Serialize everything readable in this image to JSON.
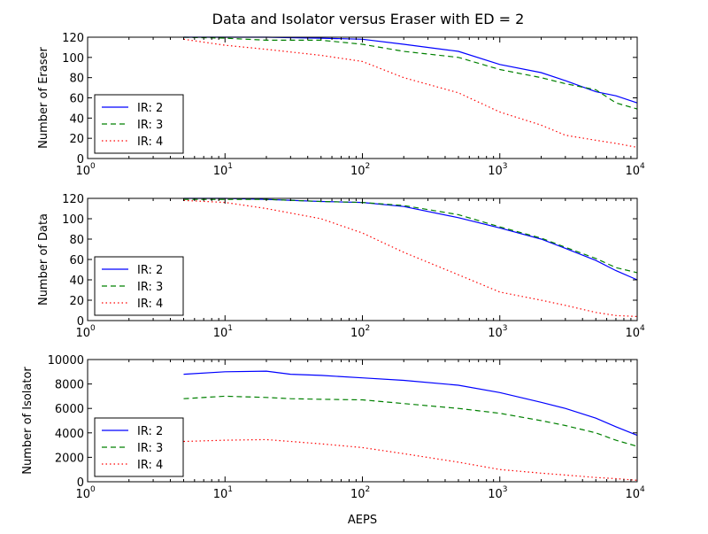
{
  "figure": {
    "title": "Data and Isolator versus Eraser with ED = 2"
  },
  "chart_data": [
    {
      "type": "line",
      "xscale": "log",
      "xlim": [
        1,
        10000
      ],
      "ylim": [
        0,
        120
      ],
      "yticks": [
        0,
        20,
        40,
        60,
        80,
        100,
        120
      ],
      "xtick_labels": [
        {
          "base": "10",
          "exp": "0"
        },
        {
          "base": "10",
          "exp": "1"
        },
        {
          "base": "10",
          "exp": "2"
        },
        {
          "base": "10",
          "exp": "3"
        },
        {
          "base": "10",
          "exp": "4"
        }
      ],
      "xlabel": "",
      "ylabel": "Number of Eraser",
      "legend_position": "lower-left",
      "series": [
        {
          "name": "IR: 2",
          "color": "#0000ff",
          "style": "solid",
          "x": [
            5,
            10,
            20,
            50,
            100,
            200,
            500,
            1000,
            2000,
            3000,
            5000,
            7000,
            10000
          ],
          "y": [
            120,
            120,
            120,
            119,
            118,
            113,
            106,
            93,
            85,
            77,
            66,
            62,
            55
          ]
        },
        {
          "name": "IR: 3",
          "color": "#008000",
          "style": "dashed",
          "x": [
            5,
            10,
            20,
            50,
            100,
            200,
            500,
            1000,
            2000,
            3000,
            5000,
            7000,
            10000
          ],
          "y": [
            120,
            119,
            117,
            117,
            113,
            106,
            100,
            88,
            80,
            74,
            68,
            55,
            49
          ]
        },
        {
          "name": "IR: 4",
          "color": "#ff0000",
          "style": "dotted",
          "x": [
            5,
            10,
            20,
            50,
            100,
            200,
            500,
            1000,
            2000,
            3000,
            5000,
            7000,
            10000
          ],
          "y": [
            118,
            112,
            108,
            102,
            96,
            80,
            65,
            46,
            33,
            23,
            18,
            15,
            11
          ]
        }
      ]
    },
    {
      "type": "line",
      "xscale": "log",
      "xlim": [
        1,
        10000
      ],
      "ylim": [
        0,
        120
      ],
      "yticks": [
        0,
        20,
        40,
        60,
        80,
        100,
        120
      ],
      "xtick_labels": [
        {
          "base": "10",
          "exp": "0"
        },
        {
          "base": "10",
          "exp": "1"
        },
        {
          "base": "10",
          "exp": "2"
        },
        {
          "base": "10",
          "exp": "3"
        },
        {
          "base": "10",
          "exp": "4"
        }
      ],
      "xlabel": "",
      "ylabel": "Number of Data",
      "legend_position": "lower-left",
      "series": [
        {
          "name": "IR: 2",
          "color": "#0000ff",
          "style": "solid",
          "x": [
            5,
            10,
            20,
            50,
            100,
            200,
            500,
            1000,
            2000,
            3000,
            5000,
            7000,
            10000
          ],
          "y": [
            120,
            120,
            119,
            117,
            116,
            112,
            101,
            91,
            80,
            71,
            59,
            49,
            40
          ]
        },
        {
          "name": "IR: 3",
          "color": "#008000",
          "style": "dashed",
          "x": [
            5,
            10,
            20,
            50,
            100,
            200,
            500,
            1000,
            2000,
            3000,
            5000,
            7000,
            10000
          ],
          "y": [
            119,
            119,
            119,
            117,
            116,
            113,
            104,
            92,
            81,
            72,
            61,
            52,
            47
          ]
        },
        {
          "name": "IR: 4",
          "color": "#ff0000",
          "style": "dotted",
          "x": [
            5,
            10,
            20,
            50,
            100,
            200,
            500,
            1000,
            2000,
            3000,
            5000,
            7000,
            10000
          ],
          "y": [
            118,
            116,
            110,
            100,
            86,
            67,
            45,
            28,
            20,
            15,
            8,
            5,
            4
          ]
        }
      ]
    },
    {
      "type": "line",
      "xscale": "log",
      "xlim": [
        1,
        10000
      ],
      "ylim": [
        0,
        10000
      ],
      "yticks": [
        0,
        2000,
        4000,
        6000,
        8000,
        10000
      ],
      "xtick_labels": [
        {
          "base": "10",
          "exp": "0"
        },
        {
          "base": "10",
          "exp": "1"
        },
        {
          "base": "10",
          "exp": "2"
        },
        {
          "base": "10",
          "exp": "3"
        },
        {
          "base": "10",
          "exp": "4"
        }
      ],
      "xlabel": "AEPS",
      "ylabel": "Number of Isolator",
      "legend_position": "lower-left",
      "series": [
        {
          "name": "IR: 2",
          "color": "#0000ff",
          "style": "solid",
          "x": [
            5,
            10,
            20,
            30,
            50,
            100,
            200,
            500,
            1000,
            2000,
            3000,
            5000,
            7000,
            10000
          ],
          "y": [
            8800,
            9000,
            9050,
            8800,
            8700,
            8500,
            8300,
            7900,
            7300,
            6500,
            6000,
            5200,
            4500,
            3800
          ]
        },
        {
          "name": "IR: 3",
          "color": "#008000",
          "style": "dashed",
          "x": [
            5,
            10,
            20,
            30,
            50,
            100,
            200,
            500,
            1000,
            2000,
            3000,
            5000,
            7000,
            10000
          ],
          "y": [
            6800,
            7000,
            6900,
            6800,
            6750,
            6700,
            6400,
            6000,
            5600,
            5000,
            4600,
            4000,
            3400,
            2900
          ]
        },
        {
          "name": "IR: 4",
          "color": "#ff0000",
          "style": "dotted",
          "x": [
            5,
            10,
            20,
            30,
            50,
            100,
            200,
            500,
            1000,
            2000,
            3000,
            5000,
            7000,
            10000
          ],
          "y": [
            3300,
            3400,
            3450,
            3300,
            3100,
            2800,
            2300,
            1600,
            1000,
            700,
            550,
            350,
            250,
            120
          ]
        }
      ]
    }
  ]
}
